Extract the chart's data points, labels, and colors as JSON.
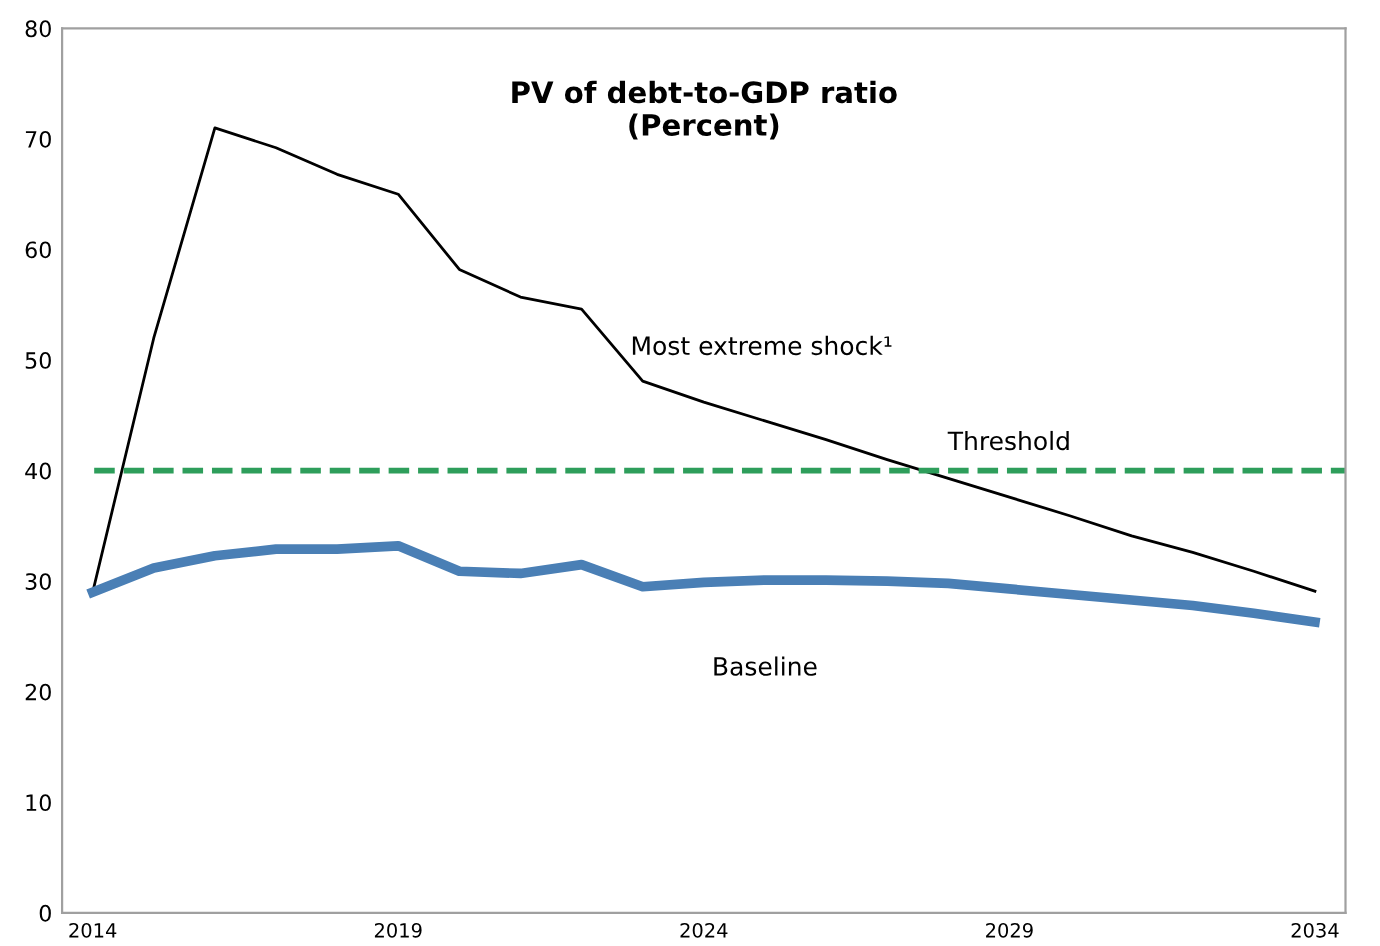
{
  "chart_data": {
    "type": "line",
    "title": "PV of debt-to-GDP ratio\n(Percent)",
    "categories": [
      "2014",
      null,
      null,
      null,
      null,
      "2019",
      null,
      null,
      null,
      null,
      "2024",
      null,
      null,
      null,
      null,
      "2029",
      null,
      null,
      null,
      null,
      "2034"
    ],
    "series": [
      {
        "name": "Most extreme shock¹",
        "color": "#000000",
        "values": [
          29,
          52,
          71,
          69.2,
          66.8,
          65,
          58.2,
          55.7,
          54.6,
          48.1,
          46.2,
          44.5,
          42.8,
          41.0,
          39.3,
          37.6,
          35.9,
          34.1,
          32.6,
          30.9,
          29.1
        ]
      },
      {
        "name": "Baseline",
        "color": "#4a7fb5",
        "values": [
          29,
          31.2,
          32.3,
          32.9,
          32.9,
          33.2,
          30.9,
          30.7,
          31.5,
          29.5,
          29.9,
          30.1,
          30.1,
          30.0,
          29.8,
          29.3,
          28.8,
          28.3,
          27.8,
          27.1,
          26.3
        ]
      }
    ],
    "ref_lines": [
      {
        "axis": "y",
        "value": 40,
        "label": "Threshold",
        "color": "#2e9e5b",
        "line_style": "dashed"
      }
    ],
    "ylim": [
      0,
      80
    ],
    "yticks": [
      0,
      10,
      20,
      30,
      40,
      50,
      60,
      70,
      80
    ],
    "grid": false,
    "legend": false,
    "marker": "none",
    "line_style": "solid"
  }
}
